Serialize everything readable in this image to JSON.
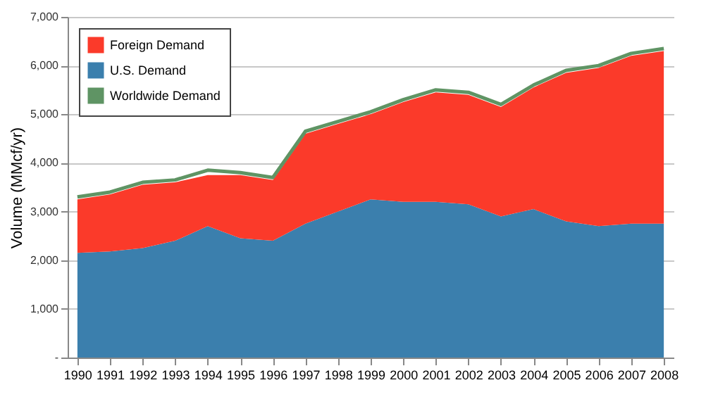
{
  "chart_data": {
    "type": "area",
    "stacked": true,
    "ylabel": "Volume (MMcf/yr)",
    "categories": [
      "1990",
      "1991",
      "1992",
      "1993",
      "1994",
      "1995",
      "1996",
      "1997",
      "1998",
      "1999",
      "2000",
      "2001",
      "2002",
      "2003",
      "2004",
      "2005",
      "2006",
      "2007",
      "2008"
    ],
    "series": [
      {
        "name": "U.S. Demand",
        "color": "#3b7fad",
        "values": [
          2150,
          2180,
          2250,
          2400,
          2700,
          2450,
          2400,
          2750,
          3000,
          3250,
          3200,
          3200,
          3150,
          2900,
          3050,
          2800,
          2700,
          2750,
          2750
        ]
      },
      {
        "name": "Foreign  Demand",
        "color": "#fb3a2a",
        "values": [
          1100,
          1170,
          1300,
          1200,
          1050,
          1300,
          1250,
          1850,
          1800,
          1750,
          2050,
          2250,
          2250,
          2250,
          2500,
          3050,
          3250,
          3450,
          3550
        ]
      },
      {
        "name": "Worldwide Demand",
        "type": "line",
        "color": "#5f9464",
        "values": [
          3300,
          3400,
          3600,
          3650,
          3850,
          3800,
          3700,
          4650,
          4850,
          5050,
          5300,
          5500,
          5450,
          5200,
          5600,
          5900,
          6000,
          6250,
          6350
        ]
      }
    ],
    "ylim": [
      0,
      7000
    ],
    "yticks": [
      {
        "value": 0,
        "label": "-"
      },
      {
        "value": 1000,
        "label": "1,000"
      },
      {
        "value": 2000,
        "label": "2,000"
      },
      {
        "value": 3000,
        "label": "3,000"
      },
      {
        "value": 4000,
        "label": "4,000"
      },
      {
        "value": 5000,
        "label": "5,000"
      },
      {
        "value": 6000,
        "label": "6,000"
      },
      {
        "value": 7000,
        "label": "7,000"
      }
    ],
    "grid": "y",
    "legend": "top left"
  }
}
